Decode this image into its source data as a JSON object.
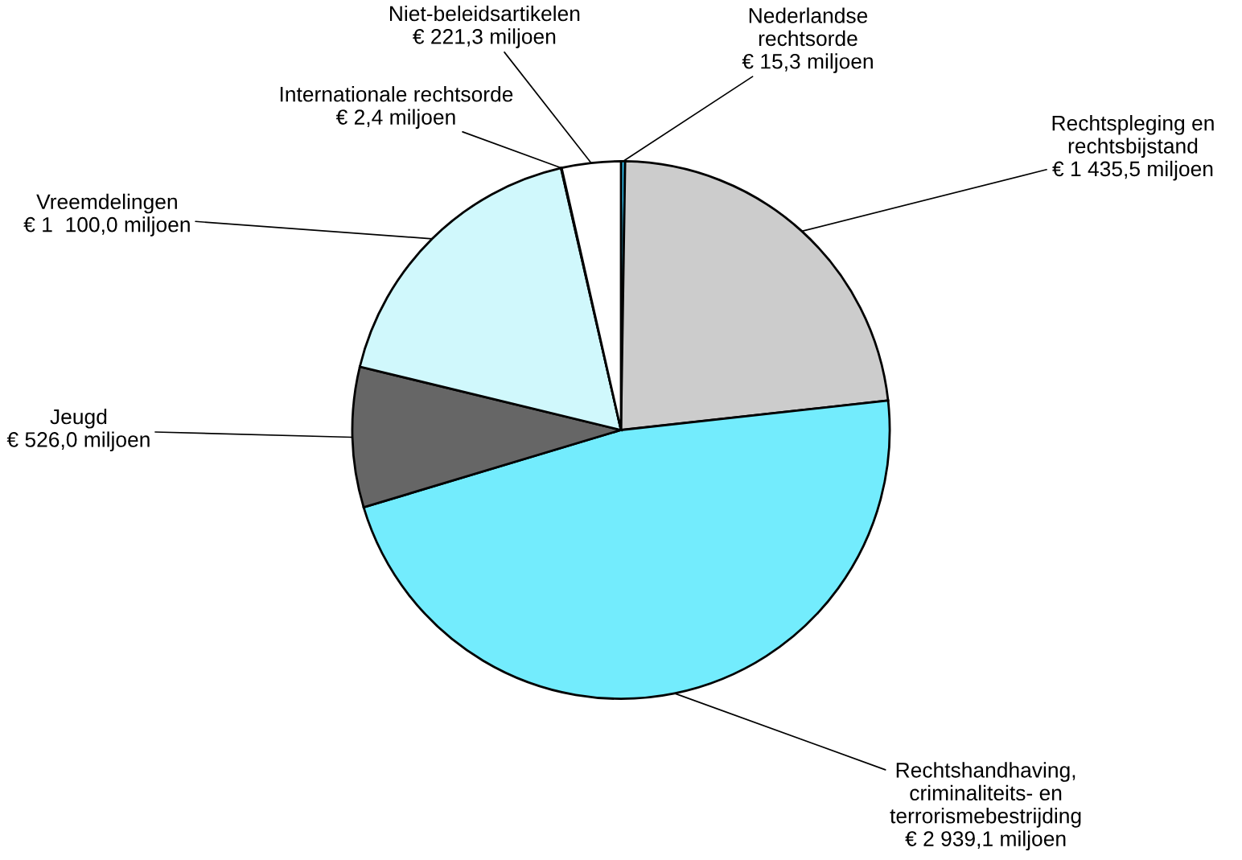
{
  "chart_data": {
    "type": "pie",
    "categories": [
      "Nederlandse\nrechtsorde",
      "Rechtspleging en\nrechtsbijstand",
      "Rechtshandhaving,\ncriminaliteits- en\nterrorismebestrijding",
      "Jeugd",
      "Vreemdelingen",
      "Internationale rechtsorde",
      "Niet-beleidsartikelen"
    ],
    "values": [
      15.3,
      1435.5,
      2939.1,
      526.0,
      1100.0,
      2.4,
      221.3
    ],
    "value_labels": [
      "€ 15,3 miljoen",
      "€ 1 435,5 miljoen",
      "€ 2 939,1 miljoen",
      "€ 526,0 miljoen",
      "€ 1  100,0 miljoen",
      "€ 2,4 miljoen",
      "€ 221,3 miljoen"
    ],
    "colors": [
      "#33ccff",
      "#cccccc",
      "#73ecfd",
      "#666666",
      "#d0f8fc",
      "#333333",
      "#ffffff"
    ]
  }
}
